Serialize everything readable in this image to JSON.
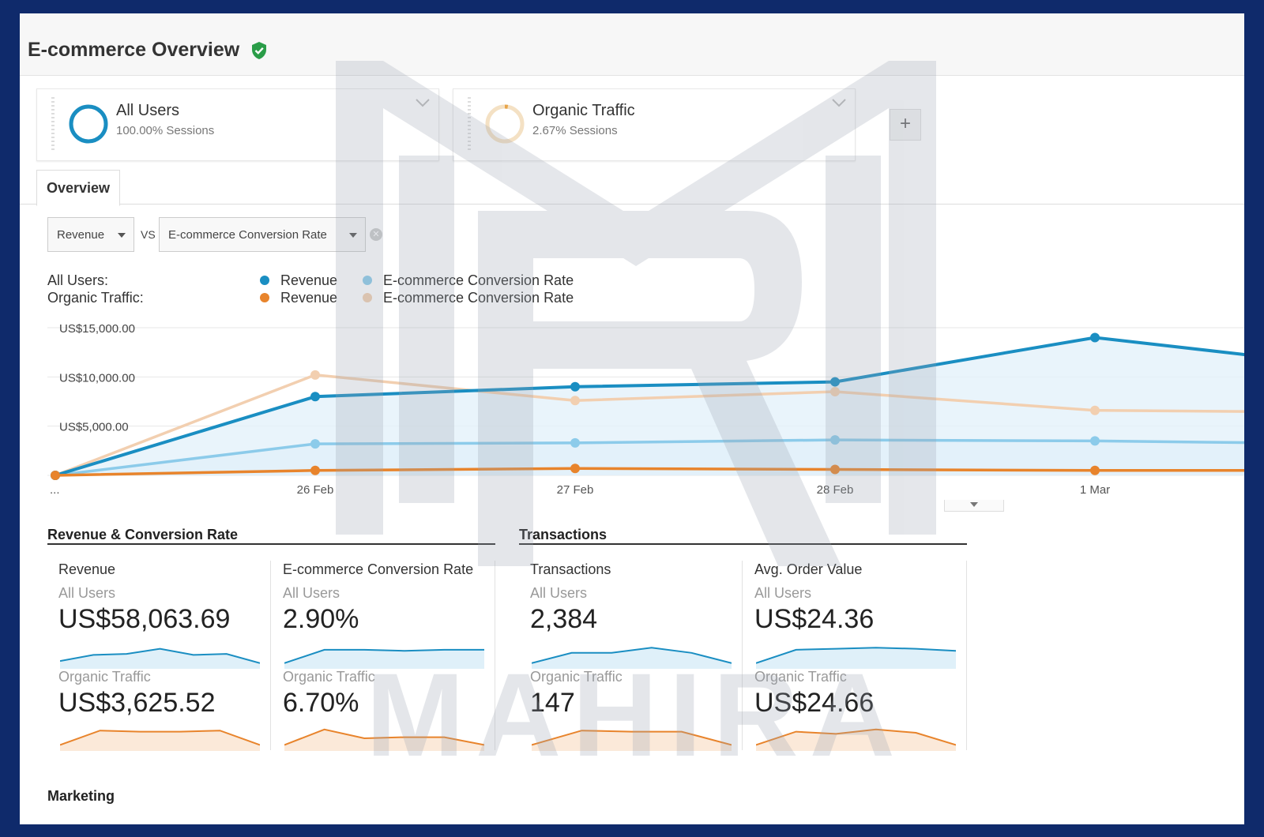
{
  "page": {
    "title": "E-commerce Overview",
    "verified_icon": "shield-check-icon",
    "accent": "#1a8ec2",
    "secondary": "#e8842c"
  },
  "segments": [
    {
      "name": "All Users",
      "sessions": "100.00% Sessions",
      "color": "#1a8ec2"
    },
    {
      "name": "Organic Traffic",
      "sessions": "2.67% Sessions",
      "color": "#f2c27a"
    }
  ],
  "add_segment_label": "+",
  "tabs": [
    {
      "label": "Overview"
    }
  ],
  "metric_selectors": {
    "primary": "Revenue",
    "vs": "VS",
    "secondary": "E-commerce Conversion Rate"
  },
  "legend": {
    "all_users_label": "All Users:",
    "organic_label": "Organic Traffic:",
    "revenue": "Revenue",
    "conv_rate": "E-commerce Conversion Rate"
  },
  "chart_data": {
    "type": "line",
    "x": [
      "...",
      "26 Feb",
      "27 Feb",
      "28 Feb",
      "1 Mar",
      ""
    ],
    "y_ticks": [
      "US$15,000.00",
      "US$10,000.00",
      "US$5,000.00"
    ],
    "ylim": [
      0,
      15000
    ],
    "series": [
      {
        "name": "Revenue",
        "segment": "All Users",
        "color": "#1a8ec2",
        "values": [
          0,
          8000,
          9000,
          9500,
          14000,
          11000
        ]
      },
      {
        "name": "E-commerce Conversion Rate",
        "segment": "All Users",
        "color": "#8ccbea",
        "values": [
          0,
          3200,
          3300,
          3600,
          3500,
          3200
        ]
      },
      {
        "name": "Revenue",
        "segment": "Organic Traffic",
        "color": "#e8842c",
        "values": [
          0,
          500,
          700,
          600,
          500,
          500
        ]
      },
      {
        "name": "E-commerce Conversion Rate",
        "segment": "Organic Traffic",
        "color": "#f2cfb0",
        "values": [
          0,
          10200,
          7600,
          8500,
          6600,
          6400
        ]
      }
    ]
  },
  "sections": {
    "revenue_conv": "Revenue & Conversion Rate",
    "transactions": "Transactions",
    "marketing": "Marketing"
  },
  "metrics": [
    {
      "name": "Revenue",
      "seg1": "All Users",
      "val1": "US$58,063.69",
      "seg2": "Organic Traffic",
      "val2": "US$3,625.52",
      "spark1": [
        0.3,
        0.6,
        0.65,
        0.9,
        0.6,
        0.65,
        0.2
      ],
      "spark2": [
        0.2,
        0.85,
        0.8,
        0.8,
        0.85,
        0.2
      ]
    },
    {
      "name": "E-commerce Conversion Rate",
      "seg1": "All Users",
      "val1": "2.90%",
      "seg2": "Organic Traffic",
      "val2": "6.70%",
      "spark1": [
        0.2,
        0.85,
        0.85,
        0.8,
        0.85,
        0.85
      ],
      "spark2": [
        0.2,
        0.9,
        0.5,
        0.55,
        0.55,
        0.2
      ]
    },
    {
      "name": "Transactions",
      "seg1": "All Users",
      "val1": "2,384",
      "seg2": "Organic Traffic",
      "val2": "147",
      "spark1": [
        0.2,
        0.7,
        0.7,
        0.95,
        0.7,
        0.2
      ],
      "spark2": [
        0.2,
        0.85,
        0.8,
        0.8,
        0.2
      ]
    },
    {
      "name": "Avg. Order Value",
      "seg1": "All Users",
      "val1": "US$24.36",
      "seg2": "Organic Traffic",
      "val2": "US$24.66",
      "spark1": [
        0.2,
        0.85,
        0.9,
        0.95,
        0.9,
        0.8
      ],
      "spark2": [
        0.2,
        0.8,
        0.7,
        0.9,
        0.75,
        0.2
      ]
    }
  ],
  "watermark_text": "MAHIRA"
}
